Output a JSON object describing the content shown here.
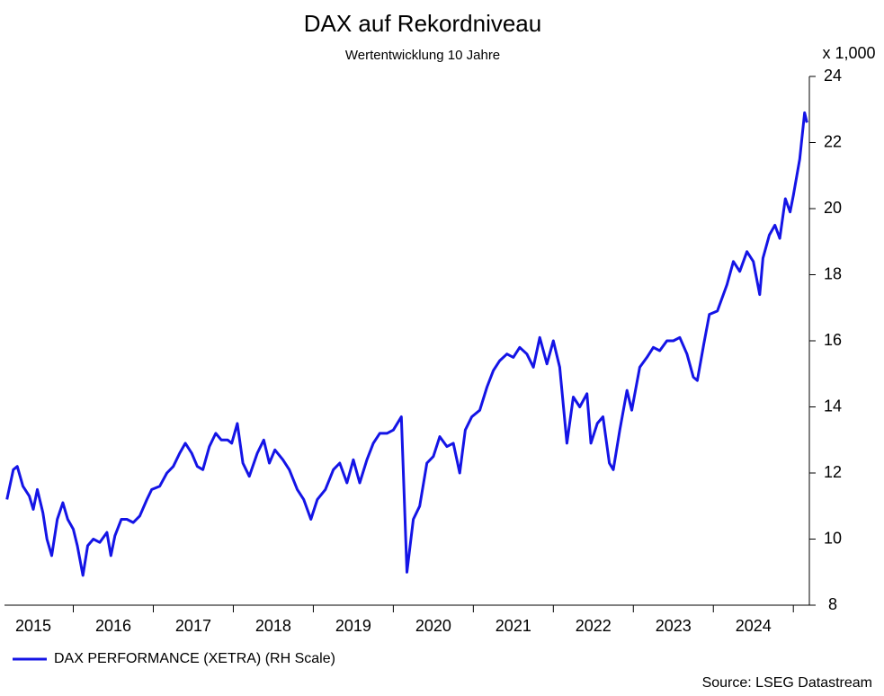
{
  "chart_data": {
    "type": "line",
    "title": "DAX auf Rekordniveau",
    "subtitle": "Wertentwicklung 10 Jahre",
    "y_unit_label": "x 1,000",
    "source": "Source: LSEG Datastream",
    "x": [
      2015.17,
      2015.25,
      2015.3,
      2015.37,
      2015.45,
      2015.5,
      2015.55,
      2015.62,
      2015.67,
      2015.73,
      2015.8,
      2015.87,
      2015.93,
      2016.0,
      2016.05,
      2016.12,
      2016.18,
      2016.25,
      2016.33,
      2016.42,
      2016.47,
      2016.52,
      2016.6,
      2016.67,
      2016.75,
      2016.83,
      2016.92,
      2016.98,
      2017.08,
      2017.17,
      2017.25,
      2017.33,
      2017.4,
      2017.48,
      2017.55,
      2017.62,
      2017.7,
      2017.78,
      2017.85,
      2017.93,
      2017.98,
      2018.05,
      2018.12,
      2018.2,
      2018.3,
      2018.38,
      2018.45,
      2018.52,
      2018.62,
      2018.7,
      2018.8,
      2018.88,
      2018.97,
      2019.05,
      2019.15,
      2019.25,
      2019.33,
      2019.42,
      2019.5,
      2019.58,
      2019.67,
      2019.75,
      2019.83,
      2019.92,
      2020.0,
      2020.1,
      2020.17,
      2020.25,
      2020.33,
      2020.42,
      2020.5,
      2020.58,
      2020.67,
      2020.75,
      2020.83,
      2020.9,
      2020.98,
      2021.08,
      2021.17,
      2021.25,
      2021.33,
      2021.42,
      2021.5,
      2021.58,
      2021.67,
      2021.75,
      2021.83,
      2021.92,
      2022.0,
      2022.08,
      2022.17,
      2022.25,
      2022.33,
      2022.42,
      2022.47,
      2022.55,
      2022.62,
      2022.7,
      2022.75,
      2022.83,
      2022.92,
      2022.98,
      2023.08,
      2023.17,
      2023.25,
      2023.33,
      2023.42,
      2023.5,
      2023.58,
      2023.67,
      2023.75,
      2023.8,
      2023.88,
      2023.95,
      2024.05,
      2024.17,
      2024.25,
      2024.33,
      2024.42,
      2024.5,
      2024.58,
      2024.62,
      2024.7,
      2024.77,
      2024.83,
      2024.9,
      2024.96,
      2025.0,
      2025.08,
      2025.14,
      2025.17
    ],
    "series": [
      {
        "name": "DAX PERFORMANCE (XETRA) (RH Scale)",
        "color": "#1414e6",
        "axis": "y2",
        "values": [
          11.2,
          12.1,
          12.2,
          11.6,
          11.3,
          10.9,
          11.5,
          10.8,
          10.0,
          9.5,
          10.6,
          11.1,
          10.6,
          10.3,
          9.8,
          8.9,
          9.8,
          10.0,
          9.9,
          10.2,
          9.5,
          10.1,
          10.6,
          10.6,
          10.5,
          10.7,
          11.2,
          11.5,
          11.6,
          12.0,
          12.2,
          12.6,
          12.9,
          12.6,
          12.2,
          12.1,
          12.8,
          13.2,
          13.0,
          13.0,
          12.9,
          13.5,
          12.3,
          11.9,
          12.6,
          13.0,
          12.3,
          12.7,
          12.4,
          12.1,
          11.5,
          11.2,
          10.6,
          11.2,
          11.5,
          12.1,
          12.3,
          11.7,
          12.4,
          11.7,
          12.4,
          12.9,
          13.2,
          13.2,
          13.3,
          13.7,
          9.0,
          10.6,
          11.0,
          12.3,
          12.5,
          13.1,
          12.8,
          12.9,
          12.0,
          13.3,
          13.7,
          13.9,
          14.6,
          15.1,
          15.4,
          15.6,
          15.5,
          15.8,
          15.6,
          15.2,
          16.1,
          15.3,
          16.0,
          15.2,
          12.9,
          14.3,
          14.0,
          14.4,
          12.9,
          13.5,
          13.7,
          12.3,
          12.1,
          13.3,
          14.5,
          13.9,
          15.2,
          15.5,
          15.8,
          15.7,
          16.0,
          16.0,
          16.1,
          15.6,
          14.9,
          14.8,
          15.9,
          16.8,
          16.9,
          17.7,
          18.4,
          18.1,
          18.7,
          18.4,
          17.4,
          18.5,
          19.2,
          19.5,
          19.1,
          20.3,
          19.9,
          20.4,
          21.5,
          22.9,
          22.6
        ]
      }
    ],
    "xlim": [
      2015.14,
      2025.2
    ],
    "xticks": [
      2016,
      2017,
      2018,
      2019,
      2020,
      2021,
      2022,
      2023,
      2024,
      2025
    ],
    "xtick_labels": [
      {
        "value": 2015.5,
        "label": "2015"
      },
      {
        "value": 2016.5,
        "label": "2016"
      },
      {
        "value": 2017.5,
        "label": "2017"
      },
      {
        "value": 2018.5,
        "label": "2018"
      },
      {
        "value": 2019.5,
        "label": "2019"
      },
      {
        "value": 2020.5,
        "label": "2020"
      },
      {
        "value": 2021.5,
        "label": "2021"
      },
      {
        "value": 2022.5,
        "label": "2022"
      },
      {
        "value": 2023.5,
        "label": "2023"
      },
      {
        "value": 2024.5,
        "label": "2024"
      }
    ],
    "y2lim": [
      8,
      24
    ],
    "y2ticks": [
      8,
      10,
      12,
      14,
      16,
      18,
      20,
      22,
      24
    ],
    "legend": "bottom-left"
  }
}
